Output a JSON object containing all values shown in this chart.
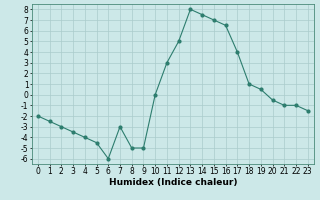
{
  "x": [
    0,
    1,
    2,
    3,
    4,
    5,
    6,
    7,
    8,
    9,
    10,
    11,
    12,
    13,
    14,
    15,
    16,
    17,
    18,
    19,
    20,
    21,
    22,
    23
  ],
  "y": [
    -2,
    -2.5,
    -3,
    -3.5,
    -4,
    -4.5,
    -6,
    -3,
    -5,
    -5,
    0,
    3,
    5,
    8,
    7.5,
    7,
    6.5,
    4,
    1,
    0.5,
    -0.5,
    -1,
    -1,
    -1.5
  ],
  "line_color": "#2d7d6e",
  "bg_color": "#cce8e8",
  "grid_color": "#aacccc",
  "xlabel": "Humidex (Indice chaleur)",
  "xlim": [
    -0.5,
    23.5
  ],
  "ylim": [
    -6.5,
    8.5
  ],
  "yticks": [
    -6,
    -5,
    -4,
    -3,
    -2,
    -1,
    0,
    1,
    2,
    3,
    4,
    5,
    6,
    7,
    8
  ],
  "xticks": [
    0,
    1,
    2,
    3,
    4,
    5,
    6,
    7,
    8,
    9,
    10,
    11,
    12,
    13,
    14,
    15,
    16,
    17,
    18,
    19,
    20,
    21,
    22,
    23
  ],
  "xtick_labels": [
    "0",
    "1",
    "2",
    "3",
    "4",
    "5",
    "6",
    "7",
    "8",
    "9",
    "10",
    "11",
    "12",
    "13",
    "14",
    "15",
    "16",
    "17",
    "18",
    "19",
    "20",
    "21",
    "22",
    "23"
  ],
  "font_size_ticks": 5.5,
  "font_size_label": 6.5,
  "linewidth": 0.8,
  "markersize": 2.0
}
